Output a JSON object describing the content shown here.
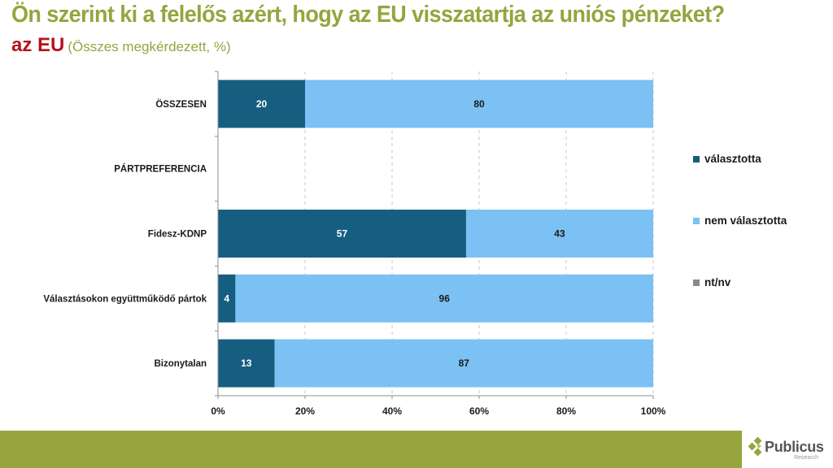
{
  "header": {
    "title": "Ön szerint ki a felelős azért, hogy az EU visszatartja az uniós pénzeket?",
    "subtitle_main": "az EU",
    "subtitle_note": "(Összes megkérdezett, %)"
  },
  "colors": {
    "title": "#97a43f",
    "subtitle_main": "#b5121b",
    "valasztotta": "#165e80",
    "nem_valasztotta": "#7bc1f3",
    "ntnv": "#898989",
    "footer": "#98a53f"
  },
  "legend": {
    "items": [
      {
        "label": "választotta",
        "color": "#165e80"
      },
      {
        "label": "nem választotta",
        "color": "#7bc1f3"
      },
      {
        "label": "nt/nv",
        "color": "#898989"
      }
    ]
  },
  "logo": {
    "name": "Publicus",
    "sub": "Research"
  },
  "chart_data": {
    "type": "bar",
    "orientation": "horizontal",
    "stacked": "percent",
    "title": "Ön szerint ki a felelős azért, hogy az EU visszatartja az uniós pénzeket?",
    "subtitle": "az EU (Összes megkérdezett, %)",
    "categories": [
      "ÖSSZESEN",
      "PÁRTPREFERENCIA",
      "Fidesz-KDNP",
      "Választásokon együttműködő pártok",
      "Bizonytalan"
    ],
    "series": [
      {
        "name": "választotta",
        "values": [
          20,
          null,
          57,
          4,
          13
        ]
      },
      {
        "name": "nem választotta",
        "values": [
          80,
          null,
          43,
          96,
          87
        ]
      },
      {
        "name": "nt/nv",
        "values": [
          0,
          null,
          0,
          0,
          0
        ]
      }
    ],
    "xlim": [
      0,
      100
    ],
    "x_ticks": [
      "0%",
      "20%",
      "40%",
      "60%",
      "80%",
      "100%"
    ],
    "grid": "vertical dashed",
    "legend_position": "right",
    "xlabel": "",
    "ylabel": ""
  }
}
